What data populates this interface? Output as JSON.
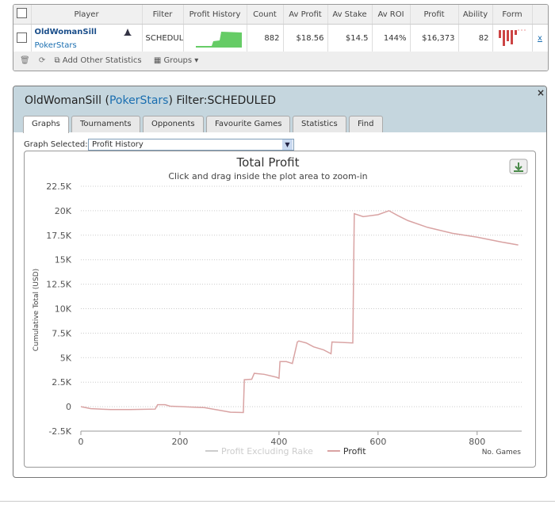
{
  "table": {
    "headers": [
      "Player",
      "Filter",
      "Profit History",
      "Count",
      "Av Profit",
      "Av Stake",
      "Av ROI",
      "Profit",
      "Ability",
      "Form"
    ],
    "rows": [
      {
        "player": "OldWomanSill",
        "site": "PokerStars",
        "filter": "SCHEDULED",
        "count": 882,
        "av_profit": "$18.56",
        "av_stake": "$14.5",
        "av_roi": "144%",
        "profit": "$16,373",
        "ability": 82,
        "close": "x"
      }
    ]
  },
  "toolbar": {
    "add": "Add Other Statistics",
    "groups": "Groups"
  },
  "panel": {
    "title_player": "OldWomanSill (",
    "title_site": "PokerStars",
    "title_filter": ") Filter:SCHEDULED",
    "tabs": [
      "Graphs",
      "Tournaments",
      "Opponents",
      "Favourite Games",
      "Statistics",
      "Find"
    ],
    "graph_label": "Graph Selected:",
    "graph_selected": "Profit History"
  },
  "chart_data": {
    "type": "line",
    "title": "Total Profit",
    "subtitle": "Click and drag inside the plot area to zoom-in",
    "y_label": "Cumulative Total (USD)",
    "x_label": "No. Games",
    "x": [
      0,
      20,
      60,
      100,
      150,
      155,
      170,
      180,
      250,
      302,
      328,
      330,
      345,
      350,
      370,
      395,
      400,
      402,
      415,
      427,
      437,
      440,
      455,
      470,
      490,
      505,
      507,
      549,
      552,
      570,
      600,
      622,
      640,
      660,
      700,
      750,
      800,
      850,
      883
    ],
    "series": [
      {
        "name": "Profit Excluding Rake",
        "color": "#cccccc",
        "visible": false
      },
      {
        "name": "Profit",
        "color": "#d9a3a3",
        "visible": true,
        "values": [
          0,
          -200,
          -300,
          -300,
          -250,
          200,
          200,
          50,
          -100,
          -570,
          -600,
          2750,
          2800,
          3400,
          3300,
          3000,
          2900,
          4600,
          4600,
          4400,
          6600,
          6700,
          6500,
          6100,
          5800,
          5400,
          6600,
          6500,
          19700,
          19400,
          19600,
          20000,
          19500,
          19000,
          18300,
          17700,
          17300,
          16800,
          16500
        ]
      }
    ],
    "xlim": [
      0,
      890
    ],
    "xticks": [
      0,
      200,
      400,
      600,
      800
    ],
    "ylim": [
      -2500,
      22500
    ],
    "yticks": [
      {
        "value": -2500,
        "label": "-2.5K"
      },
      0,
      {
        "value": 2500,
        "label": "2.5K"
      },
      {
        "value": 5000,
        "label": "5K"
      },
      {
        "value": 7500,
        "label": "7.5K"
      },
      {
        "value": 10000,
        "label": "10K"
      },
      {
        "value": 12500,
        "label": "12.5K"
      },
      {
        "value": 15000,
        "label": "15K"
      },
      {
        "value": 17500,
        "label": "17.5K"
      },
      {
        "value": 20000,
        "label": "20K"
      },
      {
        "value": 22500,
        "label": "22.5K"
      }
    ],
    "grid": true
  }
}
